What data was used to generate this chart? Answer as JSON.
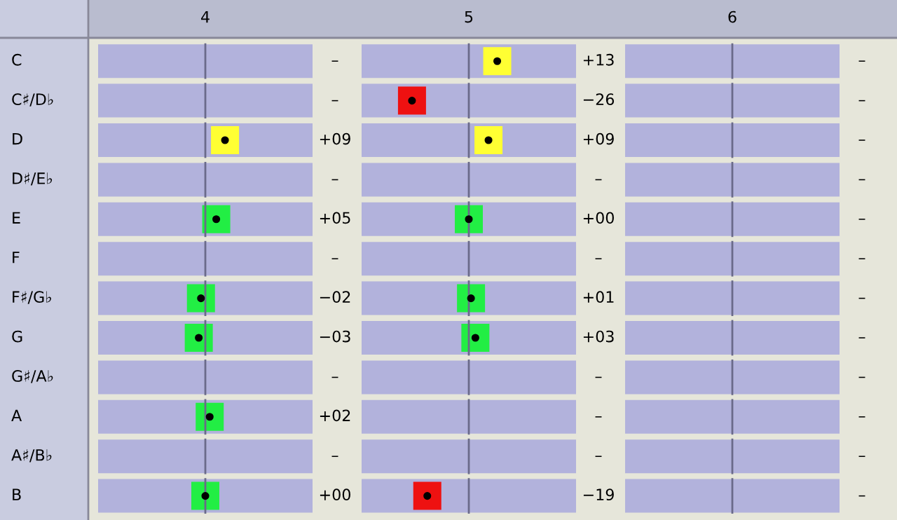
{
  "chart_data": {
    "type": "heatmap",
    "categories": [
      "4",
      "5",
      "6"
    ],
    "y_categories": [
      "C",
      "C♯/D♭",
      "D",
      "D♯/E♭",
      "E",
      "F",
      "F♯/G♭",
      "G",
      "G♯/A♭",
      "A",
      "A♯/B♭",
      "B"
    ],
    "cells": [
      [
        null,
        13,
        null
      ],
      [
        null,
        -26,
        null
      ],
      [
        9,
        9,
        null
      ],
      [
        null,
        null,
        null
      ],
      [
        5,
        0,
        null
      ],
      [
        null,
        null,
        null
      ],
      [
        -2,
        1,
        null
      ],
      [
        -3,
        3,
        null
      ],
      [
        null,
        null,
        null
      ],
      [
        2,
        null,
        null
      ],
      [
        null,
        null,
        null
      ],
      [
        0,
        -19,
        null
      ]
    ],
    "cell_labels": [
      [
        "–",
        "+13",
        "–"
      ],
      [
        "–",
        "−26",
        "–"
      ],
      [
        "+09",
        "+09",
        "–"
      ],
      [
        "–",
        "–",
        "–"
      ],
      [
        "+05",
        "+00",
        "–"
      ],
      [
        "–",
        "–",
        "–"
      ],
      [
        "−02",
        "+01",
        "–"
      ],
      [
        "−03",
        "+03",
        "–"
      ],
      [
        "–",
        "–",
        "–"
      ],
      [
        "+02",
        "–",
        "–"
      ],
      [
        "–",
        "–",
        "–"
      ],
      [
        "+00",
        "−19",
        "–"
      ]
    ],
    "colors": [
      [
        null,
        "#ffff33",
        null
      ],
      [
        null,
        "#ee1111",
        null
      ],
      [
        "#ffff33",
        "#ffff33",
        null
      ],
      [
        null,
        null,
        null
      ],
      [
        "#22ee44",
        "#22ee44",
        null
      ],
      [
        null,
        null,
        null
      ],
      [
        "#22ee44",
        "#22ee44",
        null
      ],
      [
        "#22ee44",
        "#22ee44",
        null
      ],
      [
        null,
        null,
        null
      ],
      [
        "#22ee44",
        null,
        null
      ],
      [
        null,
        null,
        null
      ],
      [
        "#22ee44",
        "#ee1111",
        null
      ]
    ]
  }
}
